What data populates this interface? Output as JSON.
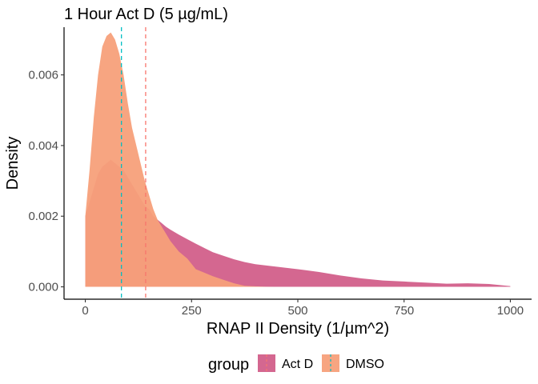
{
  "chart_data": {
    "type": "area",
    "title": "1 Hour Act D (5 µg/mL)",
    "xlabel": "RNAP II Density (1/µm^2)",
    "ylabel": "Density",
    "xlim": [
      -50,
      1050
    ],
    "ylim": [
      -0.00035,
      0.00735
    ],
    "x_ticks": [
      {
        "value": 0,
        "label": "0"
      },
      {
        "value": 250,
        "label": "250"
      },
      {
        "value": 500,
        "label": "500"
      },
      {
        "value": 750,
        "label": "750"
      },
      {
        "value": 1000,
        "label": "1000"
      }
    ],
    "y_ticks": [
      {
        "value": 0,
        "label": "0.000"
      },
      {
        "value": 0.002,
        "label": "0.002"
      },
      {
        "value": 0.004,
        "label": "0.004"
      },
      {
        "value": 0.006,
        "label": "0.006"
      }
    ],
    "grid": false,
    "legend": {
      "title": "group",
      "position": "bottom"
    },
    "series": [
      {
        "name": "Act D",
        "color": "#cc4c7d",
        "opacity": 0.85,
        "mean": 142,
        "mean_line_color": "#f8766d",
        "x": [
          0,
          10,
          20,
          30,
          40,
          50,
          60,
          70,
          80,
          90,
          100,
          110,
          120,
          130,
          140,
          150,
          160,
          170,
          180,
          190,
          200,
          220,
          240,
          260,
          280,
          300,
          325,
          350,
          375,
          400,
          450,
          500,
          550,
          600,
          650,
          700,
          750,
          800,
          850,
          900,
          950,
          1000
        ],
        "y": [
          0.002,
          0.0024,
          0.0028,
          0.0032,
          0.0034,
          0.0035,
          0.0036,
          0.0035,
          0.0034,
          0.0033,
          0.0031,
          0.0029,
          0.0027,
          0.0025,
          0.0023,
          0.0022,
          0.002,
          0.0019,
          0.0018,
          0.0017,
          0.00162,
          0.00148,
          0.00135,
          0.00122,
          0.0011,
          0.00098,
          0.00088,
          0.00078,
          0.0007,
          0.00064,
          0.00057,
          0.0005,
          0.00042,
          0.00032,
          0.00024,
          0.00018,
          0.00015,
          0.00012,
          9e-05,
          0.0001,
          8e-05,
          2e-05
        ]
      },
      {
        "name": "DMSO",
        "color": "#f7a07a",
        "opacity": 0.95,
        "mean": 85,
        "mean_line_color": "#00bfc4",
        "x": [
          0,
          10,
          20,
          30,
          40,
          50,
          60,
          70,
          80,
          90,
          100,
          110,
          120,
          130,
          140,
          150,
          160,
          170,
          180,
          190,
          200,
          220,
          240,
          260,
          280,
          300,
          325,
          350,
          375,
          400,
          425,
          450
        ],
        "y": [
          0.002,
          0.0033,
          0.0048,
          0.006,
          0.0068,
          0.0071,
          0.0072,
          0.007,
          0.0066,
          0.006,
          0.0052,
          0.0045,
          0.004,
          0.0035,
          0.003,
          0.0026,
          0.0022,
          0.0019,
          0.0017,
          0.0015,
          0.0013,
          0.001,
          0.0008,
          0.0005,
          0.0004,
          0.0003,
          0.0002,
          0.0001,
          3e-05,
          1.5e-05,
          5e-06,
          0
        ]
      }
    ]
  }
}
